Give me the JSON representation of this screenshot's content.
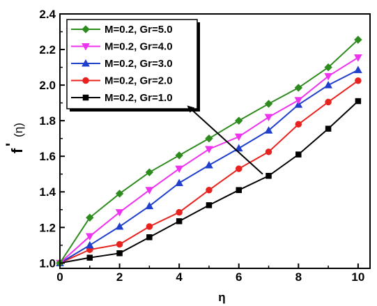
{
  "chart_data": {
    "type": "line",
    "xlabel": "η",
    "ylabel": "f'(η)",
    "ylabel_main": "f",
    "ylabel_prime": "'",
    "ylabel_arg": "(η)",
    "xlim": [
      0,
      10.4
    ],
    "ylim": [
      0.97,
      2.4
    ],
    "x_ticks": [
      0,
      2,
      4,
      6,
      8,
      10
    ],
    "y_ticks": [
      1.0,
      1.2,
      1.4,
      1.6,
      1.8,
      2.0,
      2.2,
      2.4
    ],
    "y_tick_labels": [
      "1.0",
      "1.2",
      "1.4",
      "1.6",
      "1.8",
      "2.0",
      "2.2",
      "2.4"
    ],
    "x_tick_labels": [
      "0",
      "2",
      "4",
      "6",
      "8",
      "10"
    ],
    "grid": false,
    "legend_position": "top-left",
    "x": [
      0,
      1,
      2,
      3,
      4,
      5,
      6,
      7,
      8,
      9,
      10
    ],
    "series": [
      {
        "name": "M=0.2, Gr=5.0",
        "color": "#2e8b1e",
        "marker": "diamond",
        "values": [
          1.0,
          1.255,
          1.39,
          1.51,
          1.605,
          1.7,
          1.8,
          1.895,
          1.985,
          2.1,
          2.255
        ]
      },
      {
        "name": "M=0.2, Gr=4.0",
        "color": "#ee33ee",
        "marker": "triangle-down",
        "values": [
          1.0,
          1.15,
          1.285,
          1.41,
          1.53,
          1.64,
          1.71,
          1.82,
          1.915,
          2.05,
          2.155
        ]
      },
      {
        "name": "M=0.2, Gr=3.0",
        "color": "#1f3fcc",
        "marker": "triangle-up",
        "values": [
          1.0,
          1.1,
          1.205,
          1.32,
          1.45,
          1.55,
          1.645,
          1.745,
          1.89,
          2.0,
          2.085
        ]
      },
      {
        "name": "M=0.2, Gr=2.0",
        "color": "#e8231f",
        "marker": "circle",
        "values": [
          1.0,
          1.075,
          1.105,
          1.205,
          1.285,
          1.41,
          1.53,
          1.625,
          1.78,
          1.905,
          2.025
        ]
      },
      {
        "name": "M=0.2, Gr=1.0",
        "color": "#000000",
        "marker": "square",
        "values": [
          1.0,
          1.03,
          1.055,
          1.145,
          1.235,
          1.325,
          1.41,
          1.49,
          1.61,
          1.755,
          1.91
        ]
      }
    ],
    "annotation": {
      "type": "arrow",
      "from": [
        6.8,
        1.5
      ],
      "to": [
        4.3,
        1.88
      ]
    }
  }
}
